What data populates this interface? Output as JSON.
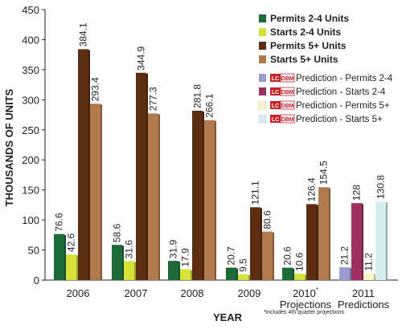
{
  "chart_data": {
    "type": "bar",
    "title": "",
    "xlabel": "YEAR",
    "ylabel": "THOUSANDS OF UNITS",
    "ylim": [
      0,
      450
    ],
    "yticks": [
      0,
      50,
      100,
      150,
      200,
      250,
      300,
      350,
      400,
      450
    ],
    "grid": false,
    "legend_position": "top-right",
    "brand_badge_text": "LCDBM",
    "categories": [
      {
        "label": "2006",
        "sublabel": ""
      },
      {
        "label": "2007",
        "sublabel": ""
      },
      {
        "label": "2008",
        "sublabel": ""
      },
      {
        "label": "2009",
        "sublabel": ""
      },
      {
        "label": "2010",
        "marker": "*",
        "sublabel": "Projections"
      },
      {
        "label": "2011",
        "sublabel": "Predictions"
      }
    ],
    "footnote": "*includes 4th quarter projections",
    "series": [
      {
        "name": "Permits 2-4 Units",
        "color": "#1e6b3a",
        "values": [
          76.6,
          58.6,
          31.9,
          20.7,
          20.6,
          null
        ]
      },
      {
        "name": "Starts 2-4 Units",
        "color": "#d6e23a",
        "values": [
          42.6,
          31.6,
          17.9,
          9.5,
          10.6,
          null
        ]
      },
      {
        "name": "Permits 5+ Units",
        "color": "#5c2e12",
        "values": [
          384.1,
          344.9,
          281.8,
          121.1,
          126.4,
          null
        ]
      },
      {
        "name": "Starts 5+ Units",
        "color": "#b07a4e",
        "values": [
          293.4,
          277.3,
          266.1,
          80.6,
          154.5,
          null
        ]
      },
      {
        "name": "Prediction - Permits 2-4",
        "color": "#9a9ccf",
        "values": [
          null,
          null,
          null,
          null,
          null,
          21.2
        ],
        "badge": true
      },
      {
        "name": "Prediction - Starts 2-4",
        "color": "#9e2f63",
        "values": [
          null,
          null,
          null,
          null,
          null,
          128
        ],
        "badge": true
      },
      {
        "name": "Prediction - Permits 5+",
        "color": "#fbf4c8",
        "values": [
          null,
          null,
          null,
          null,
          null,
          11.2
        ],
        "badge": true
      },
      {
        "name": "Prediction - Starts 5+",
        "color": "#d3edf0",
        "values": [
          null,
          null,
          null,
          null,
          null,
          130.8
        ],
        "badge": true
      }
    ],
    "data_labels": [
      [
        "76.6",
        "42.6",
        "384.1",
        "293.4",
        "",
        "",
        "",
        ""
      ],
      [
        "58.6",
        "31.6",
        "344.9",
        "277.3",
        "",
        "",
        "",
        ""
      ],
      [
        "31.9",
        "17.9",
        "281.8",
        "266.1",
        "",
        "",
        "",
        ""
      ],
      [
        "20.7",
        "9.5",
        "121.1",
        "80.6",
        "",
        "",
        "",
        ""
      ],
      [
        "20.6",
        "10.6",
        "126.4",
        "154.5",
        "",
        "",
        "",
        ""
      ],
      [
        "",
        "",
        "",
        "",
        "21.2",
        "128",
        "11.2",
        "130.8"
      ]
    ]
  }
}
